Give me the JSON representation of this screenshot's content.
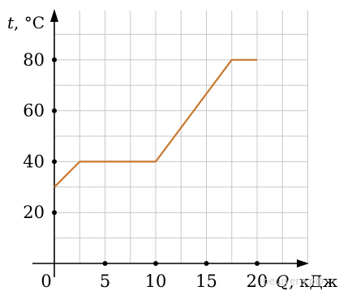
{
  "chart_data": {
    "type": "line",
    "x": [
      0,
      2.5,
      10,
      17.5,
      20
    ],
    "y": [
      30,
      40,
      40,
      80,
      80
    ],
    "xlabel": {
      "var": "Q",
      "unit": ", кДж"
    },
    "ylabel": {
      "var": "t",
      "unit": ", °C"
    },
    "xlim": [
      0,
      25
    ],
    "ylim": [
      0,
      100
    ],
    "x_ticks": [
      0,
      5,
      10,
      15,
      20
    ],
    "x_tick_labels": [
      "0",
      "5",
      "10",
      "15",
      "20"
    ],
    "y_ticks": [
      20,
      40,
      60,
      80
    ],
    "y_tick_labels": [
      "20",
      "40",
      "60",
      "80"
    ],
    "grid": true,
    "grid_step_x": 2.5,
    "grid_step_y": 10,
    "line_color": "#c8782e",
    "grid_color": "#c8c8c8",
    "axis_color": "#000000"
  },
  "watermark": "решуегэ.рф"
}
